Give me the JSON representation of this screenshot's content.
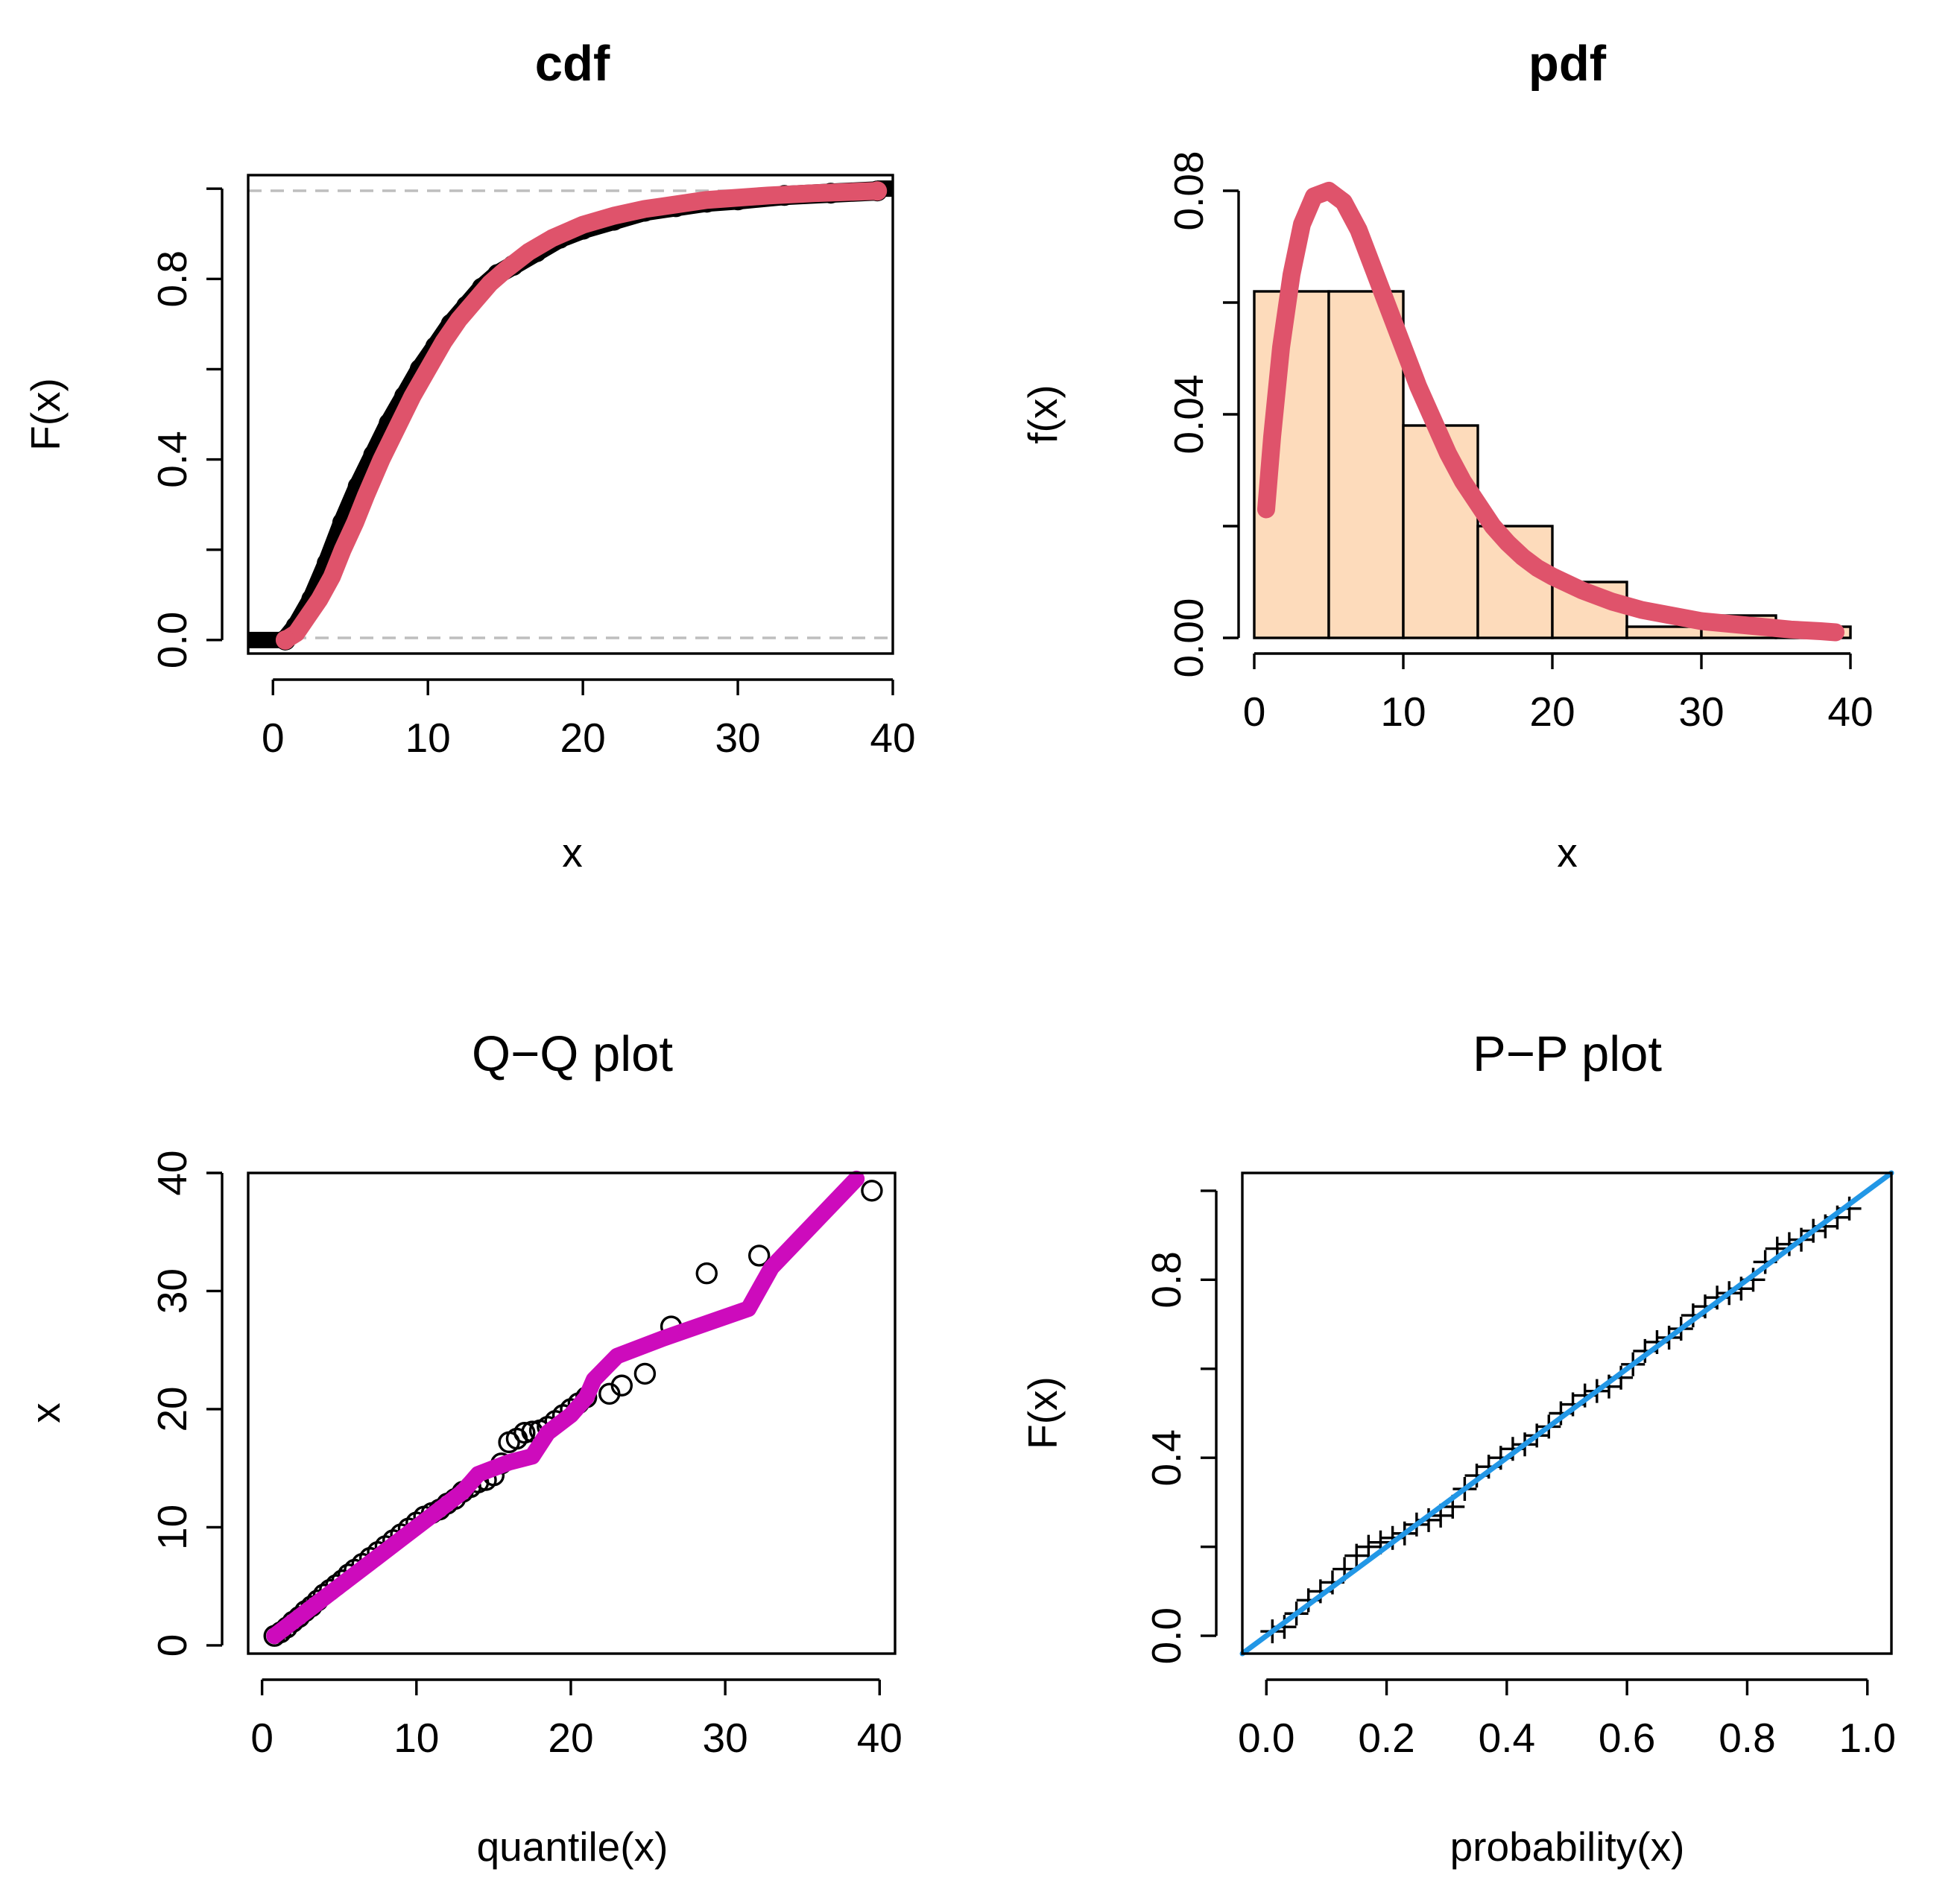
{
  "chart_data": [
    {
      "type": "line",
      "title": "cdf",
      "xlabel": "x",
      "ylabel": "F(x)",
      "xlim": [
        -1.6,
        40
      ],
      "ylim": [
        -0.03,
        1.03
      ],
      "x_ticks": [
        "0",
        "10",
        "20",
        "30",
        "40"
      ],
      "y_ticks": [
        "0.0",
        "0.4",
        "0.8"
      ],
      "y_minor_ticks": [
        0.2,
        0.6,
        1.0
      ],
      "hlines": [
        0,
        1
      ],
      "colors": {
        "fit": "#DF536B",
        "empirical": "#000000",
        "ref": "#BEBEBE"
      },
      "series": [
        {
          "x": [
            0.8,
            1.5,
            2.5,
            3.5,
            4.5,
            5.5,
            6.5,
            7.5,
            8.5,
            9.5,
            10.5,
            11.5,
            12.5,
            13.5,
            14.5,
            15.5,
            17,
            18.5,
            20,
            22,
            24,
            26,
            28,
            30,
            33,
            36,
            39
          ],
          "y": [
            0.0,
            0.03,
            0.09,
            0.17,
            0.26,
            0.34,
            0.41,
            0.48,
            0.54,
            0.6,
            0.65,
            0.7,
            0.74,
            0.78,
            0.81,
            0.83,
            0.86,
            0.89,
            0.91,
            0.93,
            0.95,
            0.96,
            0.97,
            0.975,
            0.985,
            0.99,
            0.995
          ]
        },
        {
          "x": [
            0.8,
            1.5,
            2.2,
            3.0,
            3.8,
            4.5,
            5.3,
            6.0,
            7.0,
            8.0,
            9.0,
            10.0,
            11.0,
            12.0,
            13.0,
            14.0,
            15.0,
            16.5,
            18.0,
            20.0,
            22.0,
            24.0,
            26.0,
            28.0,
            30.0,
            32.0,
            35.0,
            39.0
          ],
          "y": [
            0.0,
            0.015,
            0.05,
            0.09,
            0.14,
            0.2,
            0.26,
            0.32,
            0.4,
            0.47,
            0.54,
            0.6,
            0.66,
            0.71,
            0.75,
            0.79,
            0.82,
            0.86,
            0.89,
            0.92,
            0.94,
            0.955,
            0.965,
            0.975,
            0.98,
            0.985,
            0.99,
            0.995
          ]
        }
      ]
    },
    {
      "type": "bar",
      "title": "pdf",
      "xlabel": "x",
      "ylabel": "f(x)",
      "xlim": [
        0,
        40
      ],
      "ylim": [
        0,
        0.08
      ],
      "x_ticks": [
        "0",
        "10",
        "20",
        "30",
        "40"
      ],
      "y_ticks": [
        "0.00",
        "0.04",
        "0.08"
      ],
      "y_minor_ticks": [
        0.02,
        0.06
      ],
      "colors": {
        "bar": "#FDDBBB",
        "curve": "#DF536B"
      },
      "bins": [
        [
          0,
          5
        ],
        [
          5,
          10
        ],
        [
          10,
          15
        ],
        [
          15,
          20
        ],
        [
          20,
          25
        ],
        [
          25,
          30
        ],
        [
          30,
          35
        ],
        [
          35,
          40
        ]
      ],
      "values": [
        0.062,
        0.062,
        0.038,
        0.02,
        0.01,
        0.002,
        0.004,
        0.002
      ],
      "series": [
        {
          "x": [
            0.8,
            1.2,
            1.8,
            2.5,
            3.2,
            4.0,
            5.0,
            6.0,
            7.0,
            8.0,
            9.0,
            10.0,
            11.0,
            12.0,
            13.0,
            14.0,
            15.0,
            16.0,
            17.0,
            18.0,
            19.0,
            20.0,
            22.0,
            24.0,
            26.0,
            28.0,
            30.0,
            32.0,
            34.0,
            36.0,
            38.0,
            39.0
          ],
          "y": [
            0.023,
            0.036,
            0.052,
            0.065,
            0.074,
            0.079,
            0.08,
            0.078,
            0.073,
            0.066,
            0.059,
            0.052,
            0.045,
            0.039,
            0.033,
            0.028,
            0.024,
            0.02,
            0.017,
            0.0145,
            0.0125,
            0.011,
            0.0085,
            0.0065,
            0.005,
            0.004,
            0.003,
            0.0025,
            0.002,
            0.0015,
            0.0012,
            0.001
          ]
        }
      ]
    },
    {
      "type": "scatter",
      "title": "Q−Q plot",
      "xlabel": "quantile(x)",
      "ylabel": "x",
      "xlim": [
        -0.9,
        41
      ],
      "ylim": [
        -0.7,
        40
      ],
      "x_ticks": [
        "0",
        "10",
        "20",
        "30",
        "40"
      ],
      "y_ticks": [
        "0",
        "10",
        "20",
        "30",
        "40"
      ],
      "colors": {
        "line": "#CD0BBC",
        "points": "#000000"
      },
      "points": {
        "x": [
          0.8,
          1.2,
          1.6,
          2.0,
          2.4,
          2.8,
          3.2,
          3.6,
          4.0,
          4.4,
          4.8,
          5.2,
          5.6,
          6.0,
          6.5,
          7.0,
          7.5,
          8.0,
          8.5,
          9.0,
          9.5,
          10.0,
          10.5,
          11.0,
          11.5,
          12.0,
          12.5,
          13.0,
          13.5,
          14.0,
          14.5,
          15.0,
          15.5,
          16.0,
          16.5,
          17.0,
          17.5,
          18.0,
          18.5,
          19.0,
          19.5,
          20.0,
          20.5,
          21.0,
          22.5,
          23.3,
          24.8,
          26.5,
          28.8,
          32.2,
          39.5
        ],
        "y": [
          0.8,
          1.1,
          1.5,
          2.0,
          2.4,
          2.9,
          3.3,
          3.8,
          4.3,
          4.7,
          5.1,
          5.5,
          6.0,
          6.4,
          6.9,
          7.4,
          7.9,
          8.4,
          8.9,
          9.4,
          9.9,
          10.4,
          10.9,
          11.2,
          11.5,
          12.0,
          12.4,
          13.0,
          13.4,
          13.8,
          14.0,
          14.4,
          15.4,
          17.2,
          17.5,
          18.0,
          18.1,
          18.2,
          18.5,
          19.0,
          19.5,
          20.0,
          20.5,
          21.0,
          21.3,
          22.0,
          23.0,
          27.0,
          31.5,
          33.0,
          38.5
        ]
      },
      "series": [
        {
          "x": [
            0.8,
            3,
            5,
            7,
            9,
            11,
            13,
            14,
            15,
            16,
            17.5,
            18.5,
            20,
            21,
            21.5,
            23,
            26,
            31.5,
            33,
            38.5
          ],
          "y": [
            0.8,
            3,
            5,
            7,
            9,
            11,
            13,
            14.5,
            15,
            15.5,
            16,
            18,
            19.5,
            21,
            22.5,
            24.5,
            26,
            28.5,
            32,
            39.5
          ]
        }
      ]
    },
    {
      "type": "scatter",
      "title": "P−P plot",
      "xlabel": "probability(x)",
      "ylabel": "F(x)",
      "xlim": [
        -0.04,
        1.04
      ],
      "ylim": [
        -0.04,
        1.04
      ],
      "x_ticks": [
        "0.0",
        "0.2",
        "0.4",
        "0.6",
        "0.8",
        "1.0"
      ],
      "y_ticks": [
        "0.0",
        "0.4",
        "0.8"
      ],
      "y_minor_ticks": [
        0.2,
        0.6,
        1.0
      ],
      "colors": {
        "line": "#2297E6",
        "points": "#000000"
      },
      "points": {
        "x": [
          0.01,
          0.03,
          0.05,
          0.07,
          0.09,
          0.11,
          0.13,
          0.15,
          0.17,
          0.19,
          0.21,
          0.23,
          0.25,
          0.27,
          0.29,
          0.31,
          0.33,
          0.35,
          0.37,
          0.39,
          0.41,
          0.43,
          0.45,
          0.47,
          0.49,
          0.51,
          0.53,
          0.55,
          0.57,
          0.59,
          0.61,
          0.63,
          0.65,
          0.67,
          0.69,
          0.71,
          0.73,
          0.75,
          0.77,
          0.79,
          0.81,
          0.83,
          0.85,
          0.87,
          0.89,
          0.91,
          0.93,
          0.95,
          0.97
        ],
        "y": [
          0.01,
          0.02,
          0.05,
          0.08,
          0.1,
          0.12,
          0.15,
          0.18,
          0.2,
          0.21,
          0.22,
          0.23,
          0.25,
          0.26,
          0.27,
          0.29,
          0.33,
          0.36,
          0.38,
          0.4,
          0.42,
          0.43,
          0.45,
          0.47,
          0.5,
          0.52,
          0.54,
          0.55,
          0.56,
          0.58,
          0.61,
          0.64,
          0.66,
          0.67,
          0.69,
          0.72,
          0.74,
          0.76,
          0.77,
          0.78,
          0.8,
          0.84,
          0.87,
          0.88,
          0.89,
          0.91,
          0.92,
          0.94,
          0.96
        ]
      },
      "series": [
        {
          "x": [
            -0.04,
            1.04
          ],
          "y": [
            -0.04,
            1.04
          ]
        }
      ]
    }
  ]
}
